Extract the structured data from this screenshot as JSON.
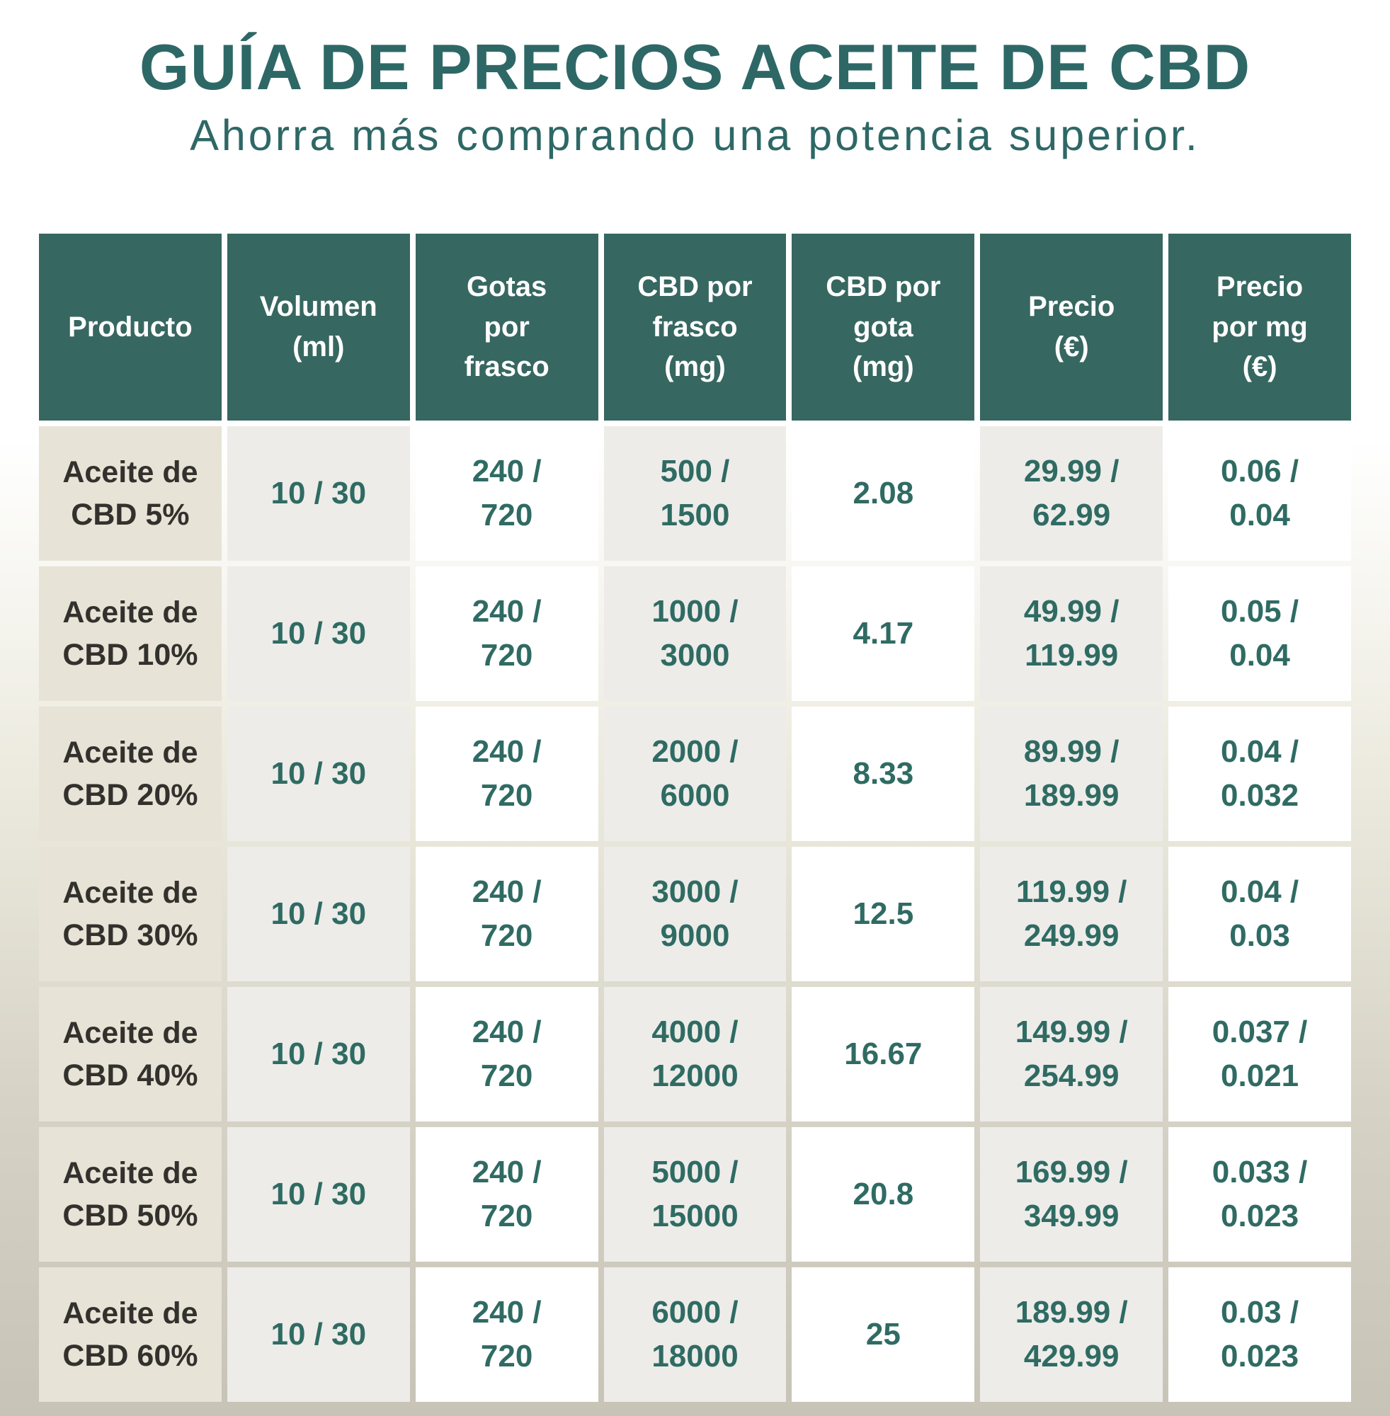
{
  "page": {
    "title": "GUÍA DE PRECIOS ACEITE DE CBD",
    "subtitle": "Ahorra más comprando una potencia superior."
  },
  "colors": {
    "header_bg": "#376761",
    "title_text": "#2e6866",
    "data_text": "#2f6b63",
    "product_col_bg": "#e7e3d6",
    "gray_col_bg": "#edece9",
    "white_col_bg": "#ffffff",
    "product_text": "#33312d",
    "page_bg_top": "#ffffff",
    "page_bg_bottom": "#c7c3b6"
  },
  "table": {
    "headers": [
      "Producto",
      "Volumen\n(ml)",
      "Gotas\npor\nfrasco",
      "CBD por\nfrasco\n(mg)",
      "CBD por\ngota\n(mg)",
      "Precio\n(€)",
      "Precio\npor mg\n(€)"
    ],
    "rows": [
      {
        "product": "Aceite de\nCBD 5%",
        "volume": "10 / 30",
        "drops": "240 /\n720",
        "cbd_bottle": "500 /\n1500",
        "cbd_drop": "2.08",
        "price": "29.99 /\n62.99",
        "price_mg": "0.06 /\n0.04"
      },
      {
        "product": "Aceite de\nCBD 10%",
        "volume": "10 / 30",
        "drops": "240 /\n720",
        "cbd_bottle": "1000 /\n3000",
        "cbd_drop": "4.17",
        "price": "49.99 /\n119.99",
        "price_mg": "0.05 /\n0.04"
      },
      {
        "product": "Aceite de\nCBD 20%",
        "volume": "10 / 30",
        "drops": "240 /\n720",
        "cbd_bottle": "2000 /\n6000",
        "cbd_drop": "8.33",
        "price": "89.99 /\n189.99",
        "price_mg": "0.04 /\n0.032"
      },
      {
        "product": "Aceite de\nCBD 30%",
        "volume": "10 / 30",
        "drops": "240 /\n720",
        "cbd_bottle": "3000 /\n9000",
        "cbd_drop": "12.5",
        "price": "119.99 /\n249.99",
        "price_mg": "0.04 /\n0.03"
      },
      {
        "product": "Aceite de\nCBD 40%",
        "volume": "10 / 30",
        "drops": "240 /\n720",
        "cbd_bottle": "4000 /\n12000",
        "cbd_drop": "16.67",
        "price": "149.99 /\n254.99",
        "price_mg": "0.037 /\n0.021"
      },
      {
        "product": "Aceite de\nCBD 50%",
        "volume": "10 / 30",
        "drops": "240 /\n720",
        "cbd_bottle": "5000 /\n15000",
        "cbd_drop": "20.8",
        "price": "169.99 /\n349.99",
        "price_mg": "0.033 /\n0.023"
      },
      {
        "product": "Aceite de\nCBD 60%",
        "volume": "10 / 30",
        "drops": "240 /\n720",
        "cbd_bottle": "6000 /\n18000",
        "cbd_drop": "25",
        "price": "189.99 /\n429.99",
        "price_mg": "0.03 /\n0.023"
      }
    ]
  },
  "chart_data": {
    "type": "table",
    "title": "GUÍA DE PRECIOS ACEITE DE CBD",
    "subtitle": "Ahorra más comprando una potencia superior.",
    "columns": [
      "Producto",
      "Volumen (ml)",
      "Gotas por frasco",
      "CBD por frasco (mg)",
      "CBD por gota (mg)",
      "Precio (€)",
      "Precio por mg (€)"
    ],
    "rows": [
      {
        "producto": "Aceite de CBD 5%",
        "volumen_ml": [
          10,
          30
        ],
        "gotas_por_frasco": [
          240,
          720
        ],
        "cbd_por_frasco_mg": [
          500,
          1500
        ],
        "cbd_por_gota_mg": 2.08,
        "precio_eur": [
          29.99,
          62.99
        ],
        "precio_por_mg_eur": [
          0.06,
          0.04
        ]
      },
      {
        "producto": "Aceite de CBD 10%",
        "volumen_ml": [
          10,
          30
        ],
        "gotas_por_frasco": [
          240,
          720
        ],
        "cbd_por_frasco_mg": [
          1000,
          3000
        ],
        "cbd_por_gota_mg": 4.17,
        "precio_eur": [
          49.99,
          119.99
        ],
        "precio_por_mg_eur": [
          0.05,
          0.04
        ]
      },
      {
        "producto": "Aceite de CBD 20%",
        "volumen_ml": [
          10,
          30
        ],
        "gotas_por_frasco": [
          240,
          720
        ],
        "cbd_por_frasco_mg": [
          2000,
          6000
        ],
        "cbd_por_gota_mg": 8.33,
        "precio_eur": [
          89.99,
          189.99
        ],
        "precio_por_mg_eur": [
          0.04,
          0.032
        ]
      },
      {
        "producto": "Aceite de CBD 30%",
        "volumen_ml": [
          10,
          30
        ],
        "gotas_por_frasco": [
          240,
          720
        ],
        "cbd_por_frasco_mg": [
          3000,
          9000
        ],
        "cbd_por_gota_mg": 12.5,
        "precio_eur": [
          119.99,
          249.99
        ],
        "precio_por_mg_eur": [
          0.04,
          0.03
        ]
      },
      {
        "producto": "Aceite de CBD 40%",
        "volumen_ml": [
          10,
          30
        ],
        "gotas_por_frasco": [
          240,
          720
        ],
        "cbd_por_frasco_mg": [
          4000,
          12000
        ],
        "cbd_por_gota_mg": 16.67,
        "precio_eur": [
          149.99,
          254.99
        ],
        "precio_por_mg_eur": [
          0.037,
          0.021
        ]
      },
      {
        "producto": "Aceite de CBD 50%",
        "volumen_ml": [
          10,
          30
        ],
        "gotas_por_frasco": [
          240,
          720
        ],
        "cbd_por_frasco_mg": [
          5000,
          15000
        ],
        "cbd_por_gota_mg": 20.8,
        "precio_eur": [
          169.99,
          349.99
        ],
        "precio_por_mg_eur": [
          0.033,
          0.023
        ]
      },
      {
        "producto": "Aceite de CBD 60%",
        "volumen_ml": [
          10,
          30
        ],
        "gotas_por_frasco": [
          240,
          720
        ],
        "cbd_por_frasco_mg": [
          6000,
          18000
        ],
        "cbd_por_gota_mg": 25,
        "precio_eur": [
          189.99,
          429.99
        ],
        "precio_por_mg_eur": [
          0.03,
          0.023
        ]
      }
    ]
  }
}
